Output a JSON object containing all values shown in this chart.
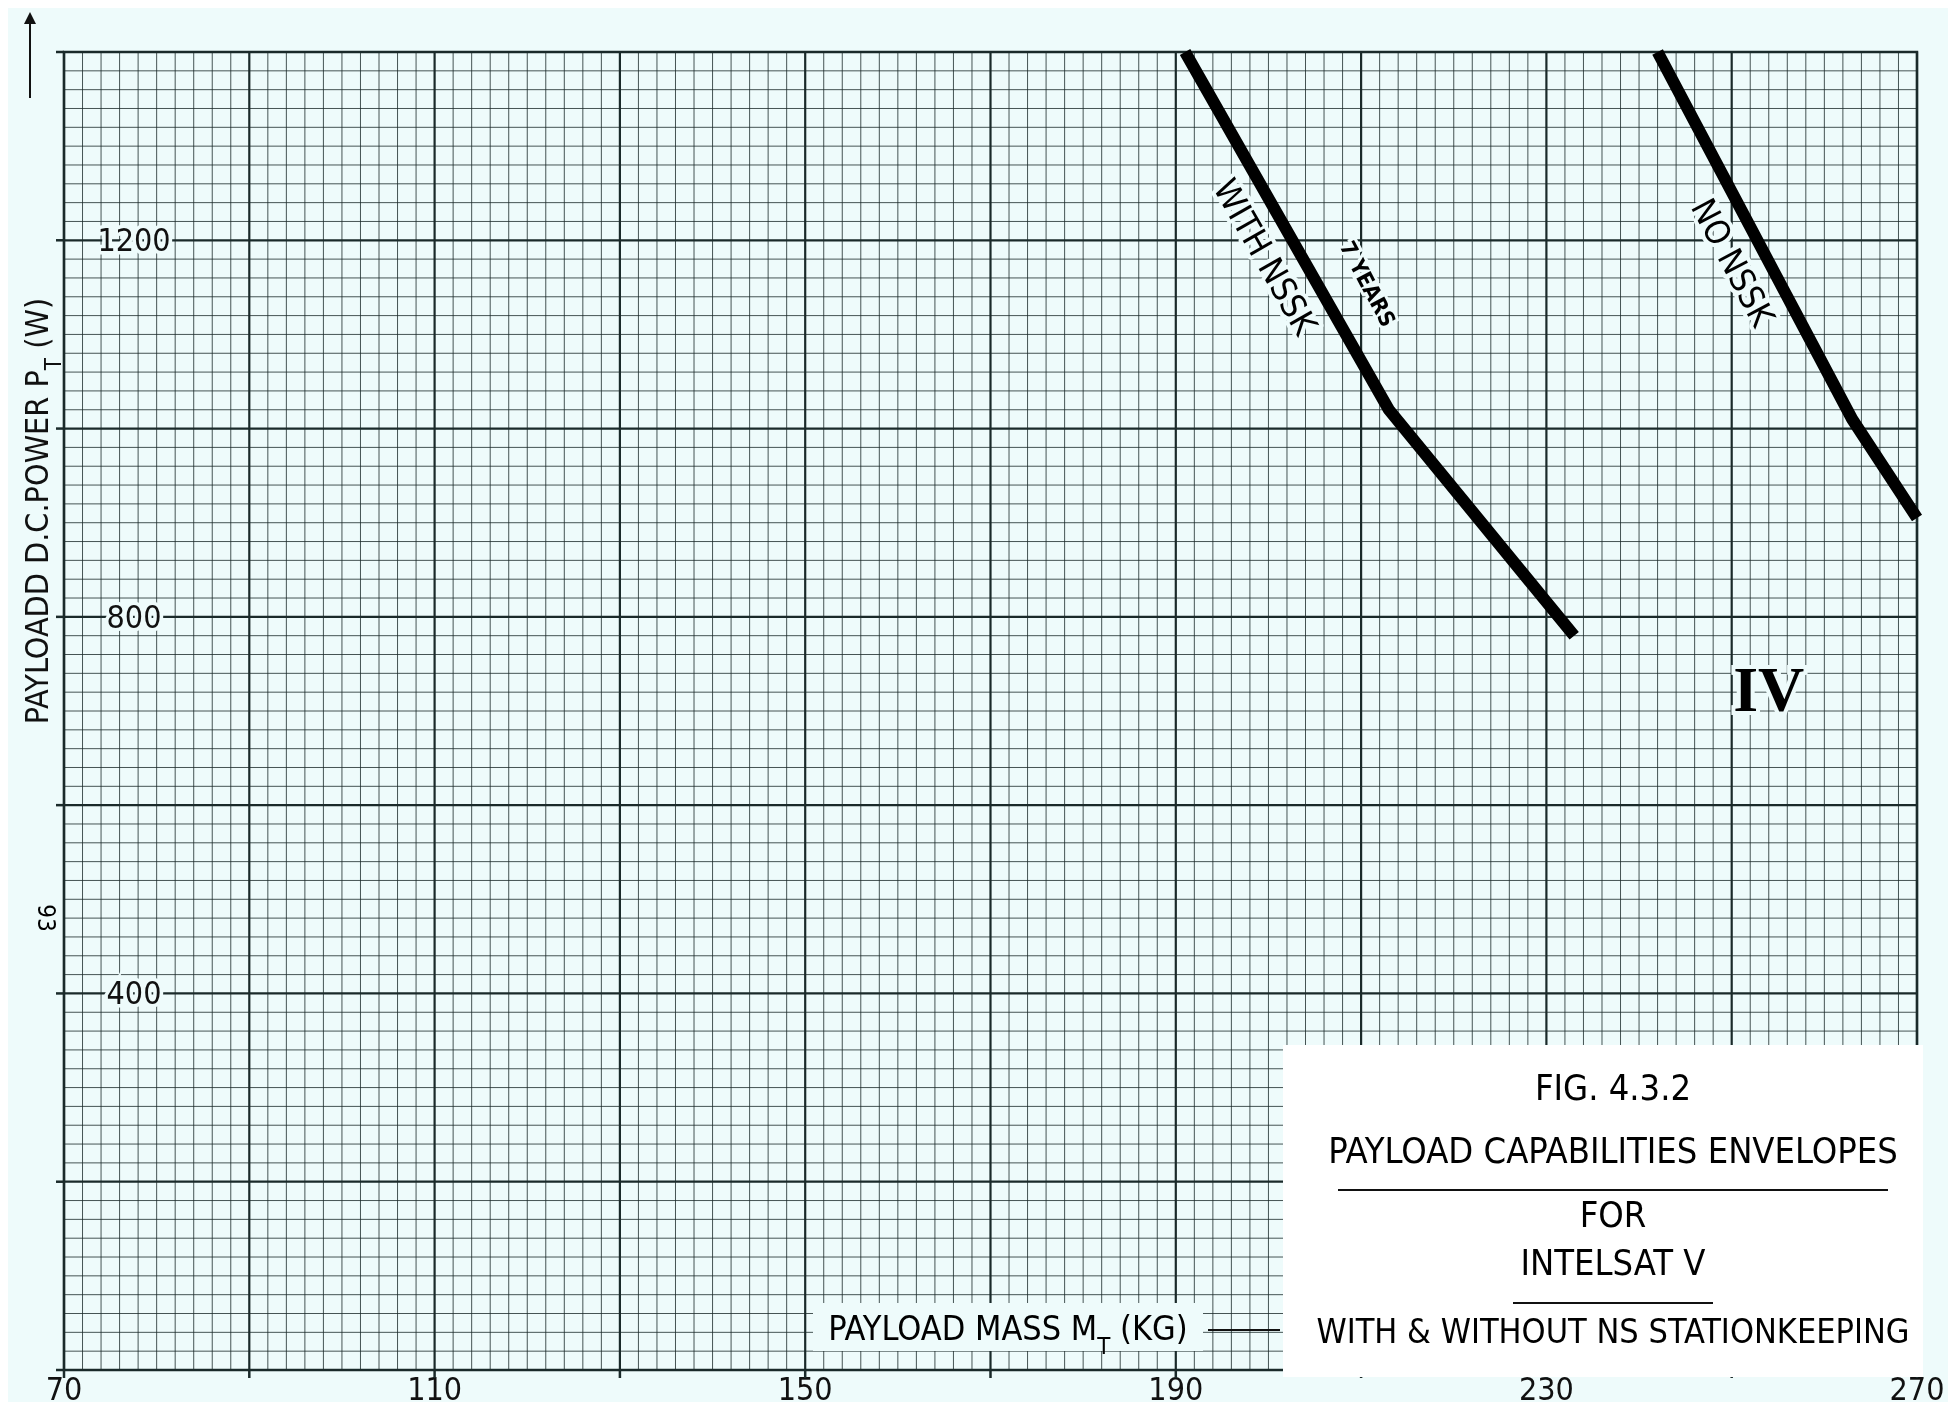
{
  "chart_data": {
    "type": "line",
    "title": "PAYLOAD CAPABILITIES ENVELOPES",
    "subtitle": "FOR",
    "xlabel": "PAYLOAD MASS M$_{T}$ (KG)",
    "ylabel": "PAYLOADD  D.C.POWER   P$_{T}$ (W)",
    "xlim": [
      70,
      270
    ],
    "ylim": [
      0,
      1400
    ],
    "xticks": [
      70,
      {
        "value": 90,
        "label": null
      },
      110,
      {
        "value": 130,
        "label": null
      },
      150,
      {
        "value": 170,
        "label": null
      },
      190,
      {
        "value": 210,
        "label": null
      },
      230,
      {
        "value": 250,
        "label": null
      },
      270
    ],
    "yticks": [
      {
        "value": 0,
        "label": null
      },
      {
        "value": 200,
        "label": null
      },
      400,
      {
        "value": 600,
        "label": null
      },
      800,
      {
        "value": 1000,
        "label": null
      },
      1200,
      {
        "value": 1400,
        "label": null
      }
    ],
    "grid": true,
    "marker": "none",
    "line_style": "solid",
    "series": [
      {
        "name": "WITH NSSK",
        "color": "#000000",
        "x": [
          191,
          213,
          233
        ],
        "values": [
          1400,
          1020,
          780
        ]
      },
      {
        "name": "NO NSSK",
        "color": "#000000",
        "x": [
          242,
          263,
          270
        ],
        "values": [
          1400,
          1010,
          905
        ]
      }
    ],
    "annotations": [
      "FIG. 4.3.2",
      "INTELSAT V",
      "WITH & WITHOUT NS STATIONKEEPING",
      "93",
      "7 YEARS",
      "IV"
    ]
  }
}
